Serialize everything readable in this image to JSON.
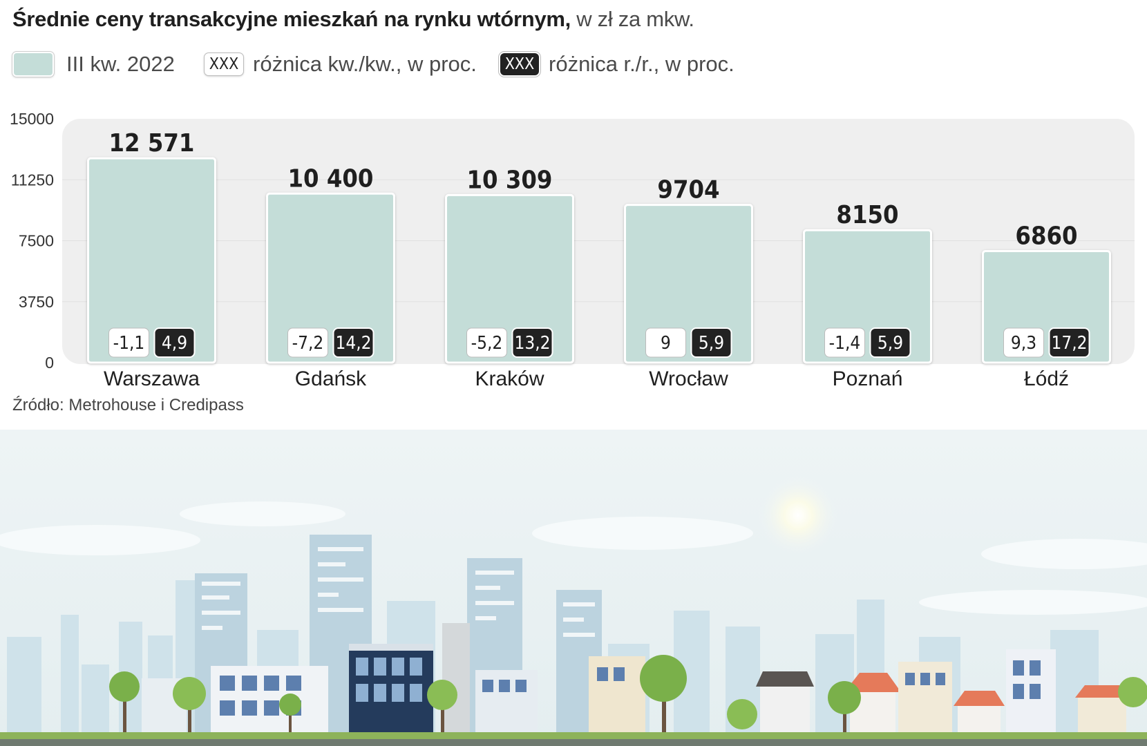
{
  "header": {
    "title_bold": "Średnie ceny transakcyjne mieszkań na rynku wtórnym,",
    "title_unit": " w zł za mkw."
  },
  "legend": {
    "series_label": "III kw. 2022",
    "qoq_box": "XXX",
    "qoq_label": "różnica kw./kw., w proc.",
    "yoy_box": "XXX",
    "yoy_label": "różnica r./r., w proc."
  },
  "source": "Źródło: Metrohouse i Credipass",
  "chart_data": {
    "type": "bar",
    "title": "Średnie ceny transakcyjne mieszkań na rynku wtórnym, w zł za mkw.",
    "categories": [
      "Warszawa",
      "Gdańsk",
      "Kraków",
      "Wrocław",
      "Poznań",
      "Łódź"
    ],
    "value_labels": [
      "12 571",
      "10 400",
      "10 309",
      "9704",
      "8150",
      "6860"
    ],
    "series": [
      {
        "name": "III kw. 2022",
        "values": [
          12571,
          10400,
          10309,
          9704,
          8150,
          6860
        ]
      }
    ],
    "qoq_change": [
      "-1,1",
      "-7,2",
      "-5,2",
      "9",
      "-1,4",
      "9,3"
    ],
    "yoy_change": [
      "4,9",
      "14,2",
      "13,2",
      "5,9",
      "5,9",
      "17,2"
    ],
    "ylim": [
      0,
      15000
    ],
    "yticks": [
      "0",
      "3750",
      "7500",
      "11250",
      "15000"
    ],
    "grid": true,
    "legend_position": "top",
    "colors": {
      "bar": "#c4ddd8",
      "plot_bg": "#efefef",
      "grid": "#e0e0e0",
      "dark_box": "#222222",
      "light_box": "#ffffff"
    }
  }
}
